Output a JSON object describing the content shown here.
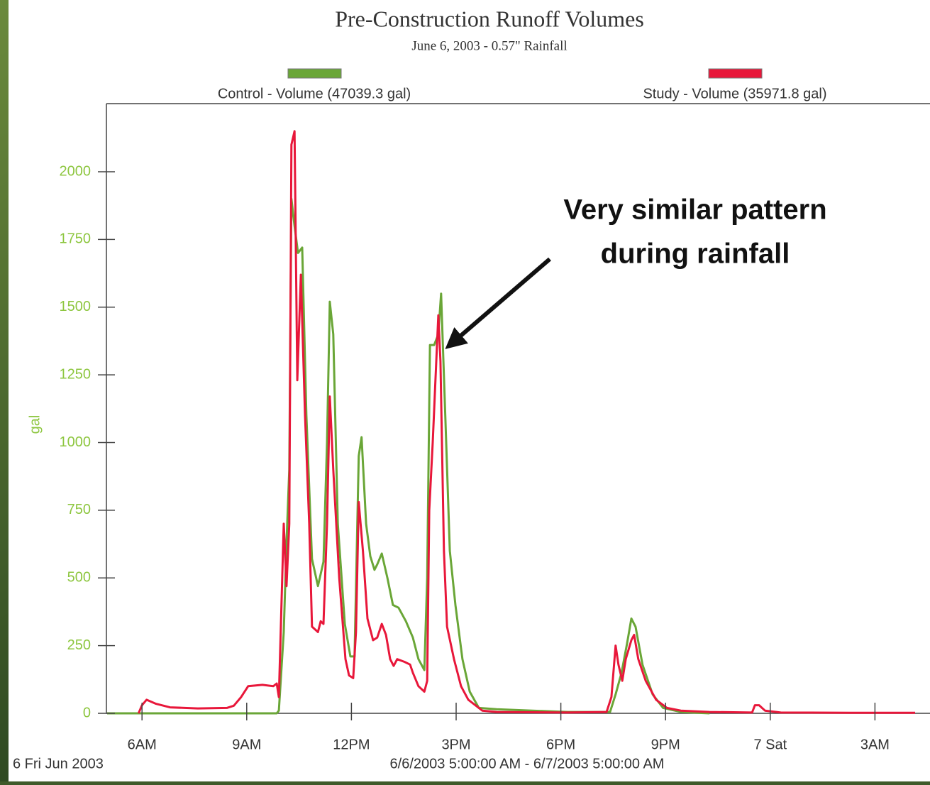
{
  "chart_data": {
    "type": "line",
    "title": "Pre-Construction Runoff Volumes",
    "subtitle": "June 6, 2003 - 0.57\" Rainfall",
    "y_label": "gal",
    "date_label": "6 Fri Jun 2003",
    "range_label": "6/6/2003 5:00:00 AM - 6/7/2003 5:00:00 AM",
    "annotation": [
      "Very similar pattern",
      "during rainfall"
    ],
    "xlim": [
      5,
      29
    ],
    "xticks": [
      {
        "value": 6,
        "label": "6AM"
      },
      {
        "value": 9,
        "label": "9AM"
      },
      {
        "value": 12,
        "label": "12PM"
      },
      {
        "value": 15,
        "label": "3PM"
      },
      {
        "value": 18,
        "label": "6PM"
      },
      {
        "value": 21,
        "label": "9PM"
      },
      {
        "value": 24,
        "label": "7 Sat"
      },
      {
        "value": 27,
        "label": "3AM"
      }
    ],
    "ylim": [
      0,
      2250
    ],
    "yticks": [
      0,
      250,
      500,
      750,
      1000,
      1250,
      1500,
      1750,
      2000
    ],
    "series": [
      {
        "name": "Control - Volume (47039.3 gal)",
        "color": "#6aa637",
        "x": [
          5,
          9.86,
          9.92,
          10.06,
          10.14,
          10.22,
          10.28,
          10.37,
          10.47,
          10.59,
          10.71,
          10.87,
          11.04,
          11.2,
          11.3,
          11.38,
          11.48,
          11.61,
          11.81,
          11.97,
          12.09,
          12.21,
          12.29,
          12.42,
          12.54,
          12.66,
          12.74,
          12.87,
          13.03,
          13.19,
          13.35,
          13.56,
          13.76,
          13.92,
          14.09,
          14.17,
          14.25,
          14.37,
          14.49,
          14.57,
          14.69,
          14.82,
          14.98,
          15.18,
          15.39,
          15.65,
          16.16,
          18.19,
          19.41,
          19.57,
          19.74,
          19.9,
          20.02,
          20.14,
          20.34,
          20.63,
          20.93,
          21.44,
          22.26
        ],
        "values": [
          0,
          0,
          10,
          300,
          630,
          900,
          1900,
          1800,
          1700,
          1720,
          1100,
          570,
          470,
          560,
          1000,
          1520,
          1400,
          700,
          330,
          210,
          210,
          950,
          1020,
          700,
          580,
          530,
          550,
          590,
          500,
          400,
          390,
          340,
          280,
          200,
          160,
          500,
          1360,
          1360,
          1400,
          1550,
          1100,
          600,
          400,
          200,
          80,
          20,
          15,
          5,
          5,
          70,
          150,
          260,
          350,
          320,
          180,
          70,
          20,
          5,
          0
        ]
      },
      {
        "name": "Study - Volume (35971.8 gal)",
        "color": "#e8173a",
        "x": [
          5.9,
          6.0,
          6.13,
          6.4,
          6.8,
          7.6,
          8.43,
          8.63,
          8.84,
          9.04,
          9.45,
          9.76,
          9.86,
          9.92,
          10.06,
          10.14,
          10.22,
          10.28,
          10.37,
          10.45,
          10.55,
          10.67,
          10.79,
          10.87,
          11.04,
          11.12,
          11.2,
          11.3,
          11.38,
          11.48,
          11.65,
          11.83,
          11.93,
          12.05,
          12.13,
          12.21,
          12.33,
          12.46,
          12.62,
          12.74,
          12.87,
          12.99,
          13.11,
          13.21,
          13.31,
          13.52,
          13.68,
          13.76,
          13.92,
          14.09,
          14.17,
          14.23,
          14.33,
          14.43,
          14.49,
          14.55,
          14.65,
          14.74,
          14.94,
          15.14,
          15.35,
          15.75,
          16.16,
          18.19,
          19.31,
          19.45,
          19.57,
          19.65,
          19.76,
          19.86,
          20.02,
          20.1,
          20.22,
          20.43,
          20.73,
          21.04,
          21.44,
          22.26,
          23.48,
          23.56,
          23.68,
          23.85,
          24.3,
          26.3,
          28.15
        ],
        "values": [
          0,
          30,
          50,
          35,
          22,
          18,
          20,
          28,
          60,
          100,
          105,
          100,
          110,
          60,
          700,
          470,
          700,
          2100,
          2150,
          1230,
          1620,
          1100,
          700,
          320,
          300,
          340,
          330,
          700,
          1170,
          900,
          500,
          200,
          140,
          130,
          300,
          780,
          600,
          350,
          270,
          280,
          330,
          290,
          200,
          175,
          200,
          190,
          180,
          150,
          100,
          80,
          120,
          750,
          1000,
          1300,
          1470,
          1300,
          600,
          320,
          200,
          100,
          50,
          10,
          5,
          3,
          5,
          60,
          250,
          180,
          120,
          200,
          270,
          290,
          200,
          120,
          50,
          20,
          10,
          5,
          3,
          30,
          30,
          10,
          3,
          2,
          2
        ]
      }
    ]
  }
}
